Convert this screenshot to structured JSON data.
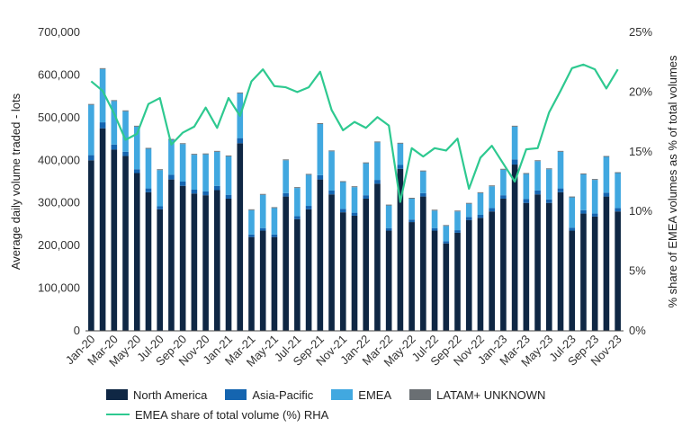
{
  "chart_data": {
    "type": "bar",
    "stacked": true,
    "categories": [
      "Jan-20",
      "Feb-20",
      "Mar-20",
      "Apr-20",
      "May-20",
      "Jun-20",
      "Jul-20",
      "Aug-20",
      "Sep-20",
      "Oct-20",
      "Nov-20",
      "Dec-20",
      "Jan-21",
      "Feb-21",
      "Mar-21",
      "Apr-21",
      "May-21",
      "Jun-21",
      "Jul-21",
      "Aug-21",
      "Sep-21",
      "Oct-21",
      "Nov-21",
      "Dec-21",
      "Jan-22",
      "Feb-22",
      "Mar-22",
      "Apr-22",
      "May-22",
      "Jun-22",
      "Jul-22",
      "Aug-22",
      "Sep-22",
      "Oct-22",
      "Nov-22",
      "Dec-22",
      "Jan-23",
      "Feb-23",
      "Mar-23",
      "Apr-23",
      "May-23",
      "Jun-23",
      "Jul-23",
      "Aug-23",
      "Sep-23",
      "Oct-23",
      "Nov-23"
    ],
    "x_tick_labels": [
      "Jan-20",
      "Mar-20",
      "May-20",
      "Jul-20",
      "Sep-20",
      "Nov-20",
      "Jan-21",
      "Mar-21",
      "May-21",
      "Jul-21",
      "Sep-21",
      "Nov-21",
      "Jan-22",
      "Mar-22",
      "May-22",
      "Jul-22",
      "Sep-22",
      "Nov-22",
      "Jan-23",
      "Mar-23",
      "May-23",
      "Jul-23",
      "Sep-23",
      "Nov-23"
    ],
    "ylabel": "Average daily volume traded - lots",
    "ylim": [
      0,
      700000
    ],
    "yticks": [
      "0",
      "100,000",
      "200,000",
      "300,000",
      "400,000",
      "500,000",
      "600,000",
      "700,000"
    ],
    "y2label": "% share of EMEA volumes as % of total volumes",
    "y2lim": [
      0,
      25
    ],
    "y2ticks": [
      "0%",
      "5%",
      "10%",
      "15%",
      "20%",
      "25%"
    ],
    "grid": false,
    "legend_position": "bottom",
    "series": [
      {
        "name": "North America",
        "color": "#0f2744",
        "values": [
          400000,
          475000,
          425000,
          410000,
          370000,
          325000,
          285000,
          355000,
          340000,
          322000,
          318000,
          330000,
          310000,
          440000,
          220000,
          235000,
          220000,
          315000,
          262000,
          285000,
          355000,
          320000,
          278000,
          270000,
          310000,
          345000,
          235000,
          380000,
          255000,
          315000,
          235000,
          205000,
          230000,
          260000,
          265000,
          280000,
          310000,
          390000,
          300000,
          320000,
          300000,
          325000,
          235000,
          275000,
          268000,
          315000,
          280000
        ]
      },
      {
        "name": "Asia-Pacific",
        "color": "#1565b0",
        "values": [
          12000,
          14000,
          12000,
          10000,
          9000,
          9000,
          7000,
          11000,
          10000,
          9000,
          9000,
          10000,
          9000,
          12000,
          6000,
          6000,
          6000,
          8000,
          7000,
          8000,
          10000,
          9000,
          8000,
          7000,
          8000,
          9000,
          6000,
          9000,
          6000,
          8000,
          6000,
          5000,
          6000,
          7000,
          7000,
          8000,
          8000,
          12000,
          9000,
          9000,
          8000,
          9000,
          7000,
          8000,
          7000,
          9000,
          8000
        ]
      },
      {
        "name": "EMEA",
        "color": "#41a8e0",
        "values": [
          118000,
          125000,
          102000,
          95000,
          100000,
          93000,
          85000,
          82000,
          88000,
          82000,
          87000,
          80000,
          90000,
          105000,
          57000,
          78000,
          62000,
          77000,
          66000,
          73000,
          120000,
          92000,
          63000,
          60000,
          75000,
          88000,
          53000,
          50000,
          49000,
          51000,
          41000,
          36000,
          44000,
          31000,
          51000,
          51000,
          60000,
          77000,
          59000,
          69000,
          71000,
          86000,
          71000,
          84000,
          79000,
          84000,
          82000
        ]
      },
      {
        "name": "LATAM+ UNKNOWN",
        "color": "#6a6f73",
        "values": [
          2000,
          2000,
          2000,
          2000,
          2000,
          2000,
          2000,
          2000,
          2000,
          2000,
          2000,
          2000,
          2000,
          2000,
          2000,
          2000,
          2000,
          2000,
          2000,
          2000,
          2000,
          2000,
          2000,
          2000,
          2000,
          2000,
          2000,
          2000,
          2000,
          2000,
          2000,
          2000,
          2000,
          2000,
          2000,
          2000,
          2000,
          2000,
          2000,
          2000,
          2000,
          2000,
          2000,
          2000,
          2000,
          2000,
          2000
        ]
      }
    ],
    "line_series": {
      "name": "EMEA share of total volume (%) RHA",
      "color": "#2ec990",
      "axis": "right",
      "values": [
        20.9,
        20.1,
        18.2,
        16.0,
        16.5,
        19.0,
        19.5,
        15.6,
        16.6,
        17.1,
        18.7,
        17.0,
        19.5,
        18.0,
        20.9,
        21.9,
        20.5,
        20.4,
        20.0,
        20.4,
        21.7,
        18.5,
        16.8,
        17.5,
        17.0,
        17.9,
        17.2,
        10.8,
        15.3,
        14.6,
        15.3,
        15.1,
        16.1,
        11.9,
        14.5,
        15.5,
        14.0,
        12.5,
        15.2,
        15.3,
        18.3,
        20.1,
        22.0,
        22.3,
        21.9,
        20.3,
        21.9
      ]
    }
  }
}
